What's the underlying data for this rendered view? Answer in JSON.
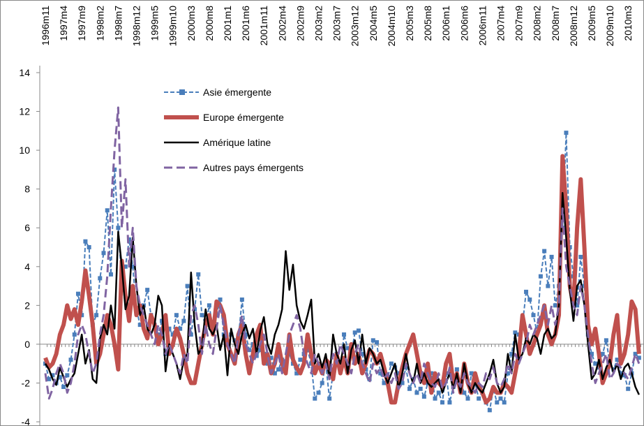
{
  "chart_data": {
    "type": "line",
    "categories": [
      "1996m11",
      null,
      null,
      null,
      null,
      "1997m4",
      null,
      null,
      null,
      null,
      "1997m9",
      null,
      null,
      null,
      null,
      "1998m2",
      null,
      null,
      null,
      null,
      "1998m7",
      null,
      null,
      null,
      null,
      "1998m12",
      null,
      null,
      null,
      null,
      "1999m5",
      null,
      null,
      null,
      null,
      "1999m10",
      null,
      null,
      null,
      null,
      "2000m3",
      null,
      null,
      null,
      null,
      "2000m8",
      null,
      null,
      null,
      null,
      "2001m1",
      null,
      null,
      null,
      null,
      "2001m6",
      null,
      null,
      null,
      null,
      "2001m11",
      null,
      null,
      null,
      null,
      "2002m4",
      null,
      null,
      null,
      null,
      "2002m9",
      null,
      null,
      null,
      null,
      "2003m2",
      null,
      null,
      null,
      null,
      "2003m7",
      null,
      null,
      null,
      null,
      "2003m12",
      null,
      null,
      null,
      null,
      "2004m5",
      null,
      null,
      null,
      null,
      "2004m10",
      null,
      null,
      null,
      null,
      "2005m3",
      null,
      null,
      null,
      null,
      "2005m8",
      null,
      null,
      null,
      null,
      "2006m1",
      null,
      null,
      null,
      null,
      "2006m6",
      null,
      null,
      null,
      null,
      "2006m11",
      null,
      null,
      null,
      null,
      "2007m4",
      null,
      null,
      null,
      null,
      "2007m9",
      null,
      null,
      null,
      null,
      "2008m2",
      null,
      null,
      null,
      null,
      "2008m7",
      null,
      null,
      null,
      null,
      "2008m12",
      null,
      null,
      null,
      null,
      "2009m5",
      null,
      null,
      null,
      null,
      "2009m10",
      null,
      null,
      null,
      null,
      "2010m3",
      null,
      null,
      null
    ],
    "series": [
      {
        "name": "Asie émergente",
        "color": "#4a7ebb",
        "style": "dashed",
        "width": 2,
        "marker": "square",
        "values": [
          -1,
          -1.8,
          -1.6,
          -2,
          -1.7,
          -2.2,
          -1.6,
          -0.8,
          0.5,
          2.6,
          1.5,
          5.3,
          5,
          1,
          1.5,
          3.4,
          4.7,
          6.9,
          3.6,
          9,
          6,
          3.3,
          4,
          5.4,
          4,
          1.8,
          1,
          2,
          2.8,
          1.5,
          1,
          0.5,
          1.2,
          -0.5,
          0.8,
          0.5,
          1.5,
          0.8,
          1.2,
          3,
          0.5,
          1.8,
          3.6,
          1.5,
          1,
          2,
          0.8,
          1.5,
          2.3,
          0.5,
          0,
          0.5,
          0.2,
          0.3,
          2.3,
          0.5,
          -0.3,
          0,
          -0.6,
          -0.3,
          -0.5,
          -1,
          -0.7,
          -1.5,
          -1.3,
          -0.8,
          -1,
          -0.5,
          -1,
          -1.5,
          -0.8,
          -0.5,
          -0.3,
          -1,
          -2.8,
          -2.5,
          -2,
          -1,
          -2.8,
          -1.5,
          -0.5,
          -1.3,
          0.5,
          -0.2,
          -0.5,
          0.6,
          0.7,
          -0.5,
          -1.3,
          -1.8,
          0.2,
          0.1,
          -1.5,
          -2,
          -1.7,
          -1,
          -1.2,
          -1.5,
          -2,
          -1.2,
          -2.3,
          -1.8,
          -2.5,
          -2.3,
          -2.7,
          -2,
          -1.5,
          -2.8,
          -2.5,
          -3,
          -1.5,
          -3,
          -2.2,
          -1.3,
          -2,
          -2.5,
          -2.8,
          -1.5,
          -2,
          -2.8,
          -2.5,
          -3,
          -3.4,
          -2.3,
          -3,
          -2.8,
          -3,
          -1.5,
          -0.5,
          0.6,
          0.5,
          1,
          2.7,
          2.3,
          1.5,
          0.6,
          3.5,
          4.8,
          3,
          4.5,
          2,
          3,
          6,
          10.9,
          5,
          3.5,
          2,
          4.5,
          3,
          0.5,
          -0.5,
          -1,
          -1.2,
          -0.5,
          0.2,
          -1,
          -1.3,
          -0.8,
          -1.5,
          -1.6,
          -2.3,
          -1.5,
          -0.5,
          -0.7
        ]
      },
      {
        "name": "Europe émergente",
        "color": "#c0504d",
        "style": "solid",
        "width": 6,
        "values": [
          -0.7,
          -1.2,
          -1,
          -0.5,
          0.5,
          1,
          2,
          1.3,
          1.8,
          1,
          2.2,
          3.8,
          2.5,
          1,
          -1,
          -0.5,
          0.5,
          1.5,
          1,
          0,
          -1.3,
          4.3,
          2.5,
          1.2,
          3,
          1.5,
          2,
          0.8,
          0.3,
          1.5,
          1,
          0,
          0.5,
          1.5,
          -0.5,
          0,
          0.8,
          0.3,
          -0.5,
          -1.5,
          -2,
          -2,
          -1,
          0,
          1,
          1.5,
          0.5,
          2.2,
          2,
          1.5,
          0,
          -0.5,
          -1,
          0.5,
          1,
          -0.5,
          -1.5,
          -0.5,
          0.5,
          1,
          -1,
          -0.5,
          -1.5,
          -1,
          0,
          -1,
          -1.5,
          0.5,
          -0.8,
          -1.2,
          -1.5,
          -1,
          0.5,
          -0.5,
          -1.5,
          -1,
          -1.5,
          -0.8,
          -1,
          -1.8,
          -0.5,
          -1.5,
          -0.7,
          -1.5,
          0,
          -1,
          -0.5,
          -1.5,
          -1,
          -0.3,
          -0.5,
          -1,
          -0.5,
          -1.2,
          -2,
          -3,
          -3,
          -2,
          -1.2,
          -0.5,
          0,
          0.5,
          -0.5,
          -1.5,
          -2,
          -1,
          -2.5,
          -1.5,
          -2,
          -2.2,
          -1,
          -0.5,
          -2,
          -1.5,
          -2.5,
          -1,
          -2,
          -2.5,
          -1.5,
          -2.2,
          -2.5,
          -3,
          -2.8,
          -2.2,
          -2.5,
          -2.5,
          -2,
          -2.2,
          -2.5,
          -1.5,
          -0.5,
          1.5,
          0.5,
          -0.5,
          0,
          0.5,
          1,
          2,
          0.5,
          0,
          0.5,
          1.5,
          9.7,
          7,
          3,
          2,
          6,
          8.5,
          5,
          1,
          0,
          0.8,
          -0.5,
          -2,
          -1.5,
          -1,
          0.5,
          1.5,
          -1,
          -0.5,
          0.5,
          2.2,
          1.8,
          -0.5
        ]
      },
      {
        "name": "Amérique latine",
        "color": "#000000",
        "style": "solid",
        "width": 2.5,
        "values": [
          -1,
          -1.3,
          -1.8,
          -2.1,
          -1.2,
          -1.7,
          -2.2,
          -1.8,
          -1.5,
          -0.5,
          0.5,
          -1,
          -0.3,
          -1.8,
          -2,
          0.3,
          1,
          0.5,
          2,
          0.8,
          5.8,
          4,
          1.8,
          2.5,
          5.5,
          3,
          1.5,
          2,
          0.8,
          0.5,
          1,
          2.5,
          2,
          -1.4,
          0,
          -0.5,
          -1,
          -1.8,
          -0.8,
          -0.5,
          3.7,
          1,
          -0.5,
          -0.2,
          1.8,
          0.8,
          0.5,
          1,
          -0.3,
          0.5,
          -1.6,
          0.8,
          0,
          -0.5,
          0.5,
          1,
          0.3,
          0.8,
          -0.5,
          0.7,
          1.4,
          0,
          -0.5,
          0.5,
          1,
          1.8,
          4.8,
          2.8,
          4.1,
          2,
          1.2,
          0.8,
          1.5,
          2.3,
          -1,
          -0.5,
          -1.2,
          -0.5,
          -1.8,
          0.5,
          -0.5,
          -1,
          0,
          -1.5,
          -0.3,
          0.2,
          -1,
          0.5,
          -1,
          -0.2,
          -0.5,
          -1,
          -0.8,
          -1.5,
          -2,
          -1.5,
          -1,
          -2.3,
          -1.5,
          -0.5,
          -1.5,
          -2,
          -1,
          -2,
          -1.5,
          -2,
          -2.2,
          -2,
          -1.8,
          -2.5,
          -2,
          -1.5,
          -2.3,
          -1.5,
          -2.5,
          -1,
          -2,
          -2.5,
          -2,
          -2.3,
          -2.5,
          -2,
          -1.5,
          -0.8,
          -2,
          -2.5,
          -2.2,
          -0.5,
          -1.5,
          0.5,
          -0.8,
          -0.5,
          0.3,
          0,
          0.5,
          0.3,
          -0.5,
          0.5,
          0.8,
          0.3,
          0.5,
          2,
          7.8,
          5.5,
          2.8,
          1.2,
          3,
          3.3,
          2,
          0,
          -1.8,
          -1.5,
          -0.8,
          -1.8,
          -1.2,
          -0.8,
          -1.5,
          -1,
          -1.8,
          -1.2,
          -1,
          -1.5,
          -2.2,
          -2.6
        ]
      },
      {
        "name": "Autres pays émergents",
        "color": "#8064a2",
        "style": "longdash",
        "width": 3,
        "values": [
          -1.5,
          -2.8,
          -2.3,
          -1.5,
          -1,
          -1.5,
          -2.5,
          -2,
          -1,
          0.5,
          1,
          0.5,
          -0.5,
          -1.5,
          -1,
          0.5,
          1.5,
          3.5,
          7,
          10,
          12.2,
          6,
          8.5,
          4,
          6,
          3,
          2,
          1.5,
          1,
          0.5,
          0,
          1,
          0.5,
          -0.5,
          0,
          -0.5,
          -1,
          -1.5,
          -0.5,
          -1,
          1.5,
          2,
          1,
          -0.5,
          1,
          0,
          -0.5,
          0.8,
          2,
          1,
          0,
          -0.5,
          -1,
          0.5,
          1.5,
          0,
          -0.5,
          -1,
          -0.5,
          0,
          0.5,
          -0.5,
          -1.5,
          -1,
          -0.5,
          -1.5,
          -0.5,
          0.5,
          1,
          1.5,
          0.8,
          -0.5,
          -1,
          -1.5,
          -0.5,
          -1,
          -1.5,
          -1,
          -1.8,
          -0.5,
          -1,
          0,
          -0.5,
          -1,
          -1.5,
          -0.5,
          0,
          -1,
          -1.5,
          -2,
          -1,
          -1.5,
          -1.2,
          -1.8,
          -1.5,
          -2,
          -1.5,
          -2.3,
          -2,
          -1,
          -1.5,
          -2,
          -1.5,
          -2,
          -1,
          -1.5,
          -2,
          -2.2,
          -1.5,
          -2.3,
          -2,
          -1.2,
          -2.5,
          -1.8,
          -2.2,
          -1.5,
          -2,
          -2.2,
          -2.5,
          -2,
          -2.2,
          -1.5,
          -1.8,
          -1.2,
          -2,
          -2.2,
          -1.8,
          -1,
          -1.5,
          -0.5,
          -1,
          -0.5,
          0,
          1,
          0.5,
          1,
          1.5,
          2,
          1,
          2,
          1,
          2,
          7,
          4,
          3,
          2,
          1.5,
          3,
          2,
          0.5,
          -1,
          -2,
          -1.5,
          -1,
          -0.5,
          -1.8,
          -1.5,
          -1,
          -1.2,
          -1.5,
          -1.8,
          -1.2,
          -0.5,
          -1
        ]
      }
    ],
    "ylim": [
      -4,
      14
    ],
    "yticks": [
      -4,
      -2,
      0,
      2,
      4,
      6,
      8,
      10,
      12,
      14
    ],
    "grid": false,
    "legend": "top-left"
  }
}
